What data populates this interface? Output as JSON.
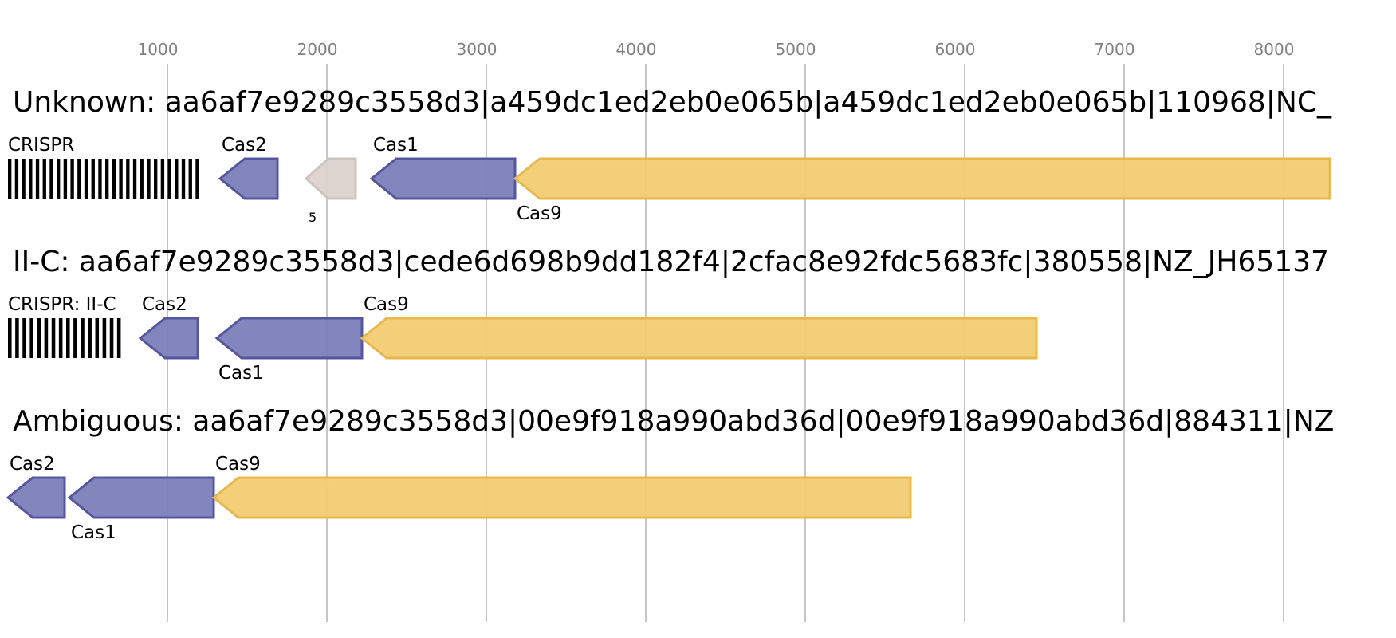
{
  "axis": {
    "ticks": [
      1000,
      2000,
      3000,
      4000,
      5000,
      6000,
      7000,
      8000
    ]
  },
  "tracks": [
    {
      "title": "Unknown: aa6af7e9289c3558d3|a459dc1ed2eb0e065b|a459dc1ed2eb0e065b|110968|NC_",
      "crispr": {
        "label": "CRISPR",
        "start": 0,
        "end": 1220,
        "repeats": 28
      },
      "genes": [
        {
          "label": "Cas2",
          "start": 1330,
          "end": 1690,
          "color": "#7b7fb8",
          "stroke": "#5457a0",
          "label_pos": "above"
        },
        {
          "label": "5",
          "start": 1870,
          "end": 2180,
          "color": "#dcd3ce",
          "stroke": "#cfc4bd",
          "label_pos": "below-small"
        },
        {
          "label": "Cas1",
          "start": 2280,
          "end": 3180,
          "color": "#7b7fb8",
          "stroke": "#5457a0",
          "label_pos": "above"
        },
        {
          "label": "Cas9",
          "start": 3180,
          "end": 8290,
          "color": "#f2cc73",
          "stroke": "#e8b84a",
          "label_pos": "below"
        }
      ]
    },
    {
      "title": "II-C: aa6af7e9289c3558d3|cede6d698b9dd182f4|2cfac8e92fdc5683fc|380558|NZ_JH65137",
      "crispr": {
        "label": "CRISPR: II-C",
        "start": 0,
        "end": 730,
        "repeats": 16
      },
      "genes": [
        {
          "label": "Cas2",
          "start": 830,
          "end": 1190,
          "color": "#7b7fb8",
          "stroke": "#5457a0",
          "label_pos": "above"
        },
        {
          "label": "Cas1",
          "start": 1310,
          "end": 2220,
          "color": "#7b7fb8",
          "stroke": "#5457a0",
          "label_pos": "below"
        },
        {
          "label": "Cas9",
          "start": 2220,
          "end": 6450,
          "color": "#f2cc73",
          "stroke": "#e8b84a",
          "label_pos": "above"
        }
      ]
    },
    {
      "title": "Ambiguous: aa6af7e9289c3558d3|00e9f918a990abd36d|00e9f918a990abd36d|884311|NZ",
      "crispr": null,
      "genes": [
        {
          "label": "Cas2",
          "start": 0,
          "end": 355,
          "color": "#7b7fb8",
          "stroke": "#5457a0",
          "label_pos": "above"
        },
        {
          "label": "Cas1",
          "start": 385,
          "end": 1290,
          "color": "#7b7fb8",
          "stroke": "#5457a0",
          "label_pos": "below"
        },
        {
          "label": "Cas9",
          "start": 1290,
          "end": 5660,
          "color": "#f2cc73",
          "stroke": "#e8b84a",
          "label_pos": "above"
        }
      ]
    }
  ]
}
